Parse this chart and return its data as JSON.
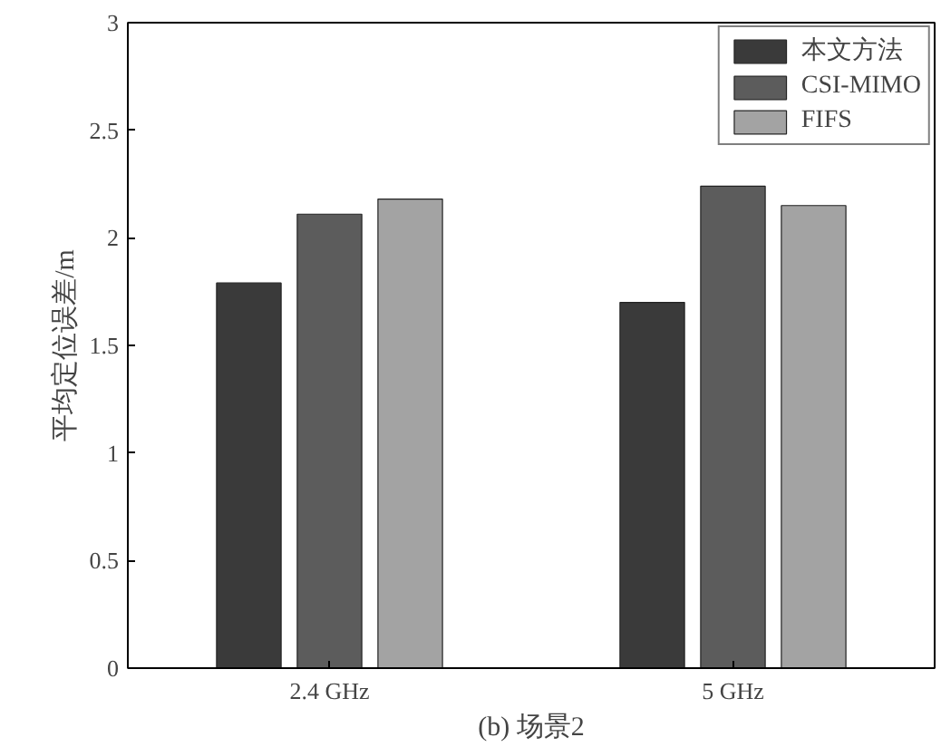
{
  "chart_data": {
    "type": "bar",
    "xlabel": "(b) 场景2",
    "ylabel": "平均定位误差/m",
    "categories": [
      "2.4 GHz",
      "5 GHz"
    ],
    "series": [
      {
        "name": "本文方法",
        "color": "#3a3a3a",
        "values": [
          1.79,
          1.7
        ]
      },
      {
        "name": "CSI-MIMO",
        "color": "#5c5c5c",
        "values": [
          2.11,
          2.24
        ]
      },
      {
        "name": "FIFS",
        "color": "#a3a3a3",
        "values": [
          2.18,
          2.15
        ]
      }
    ],
    "ylim": [
      0,
      3
    ],
    "yticks": [
      0,
      0.5,
      1,
      1.5,
      2,
      2.5,
      3
    ],
    "grid": false,
    "legend": "top right"
  }
}
